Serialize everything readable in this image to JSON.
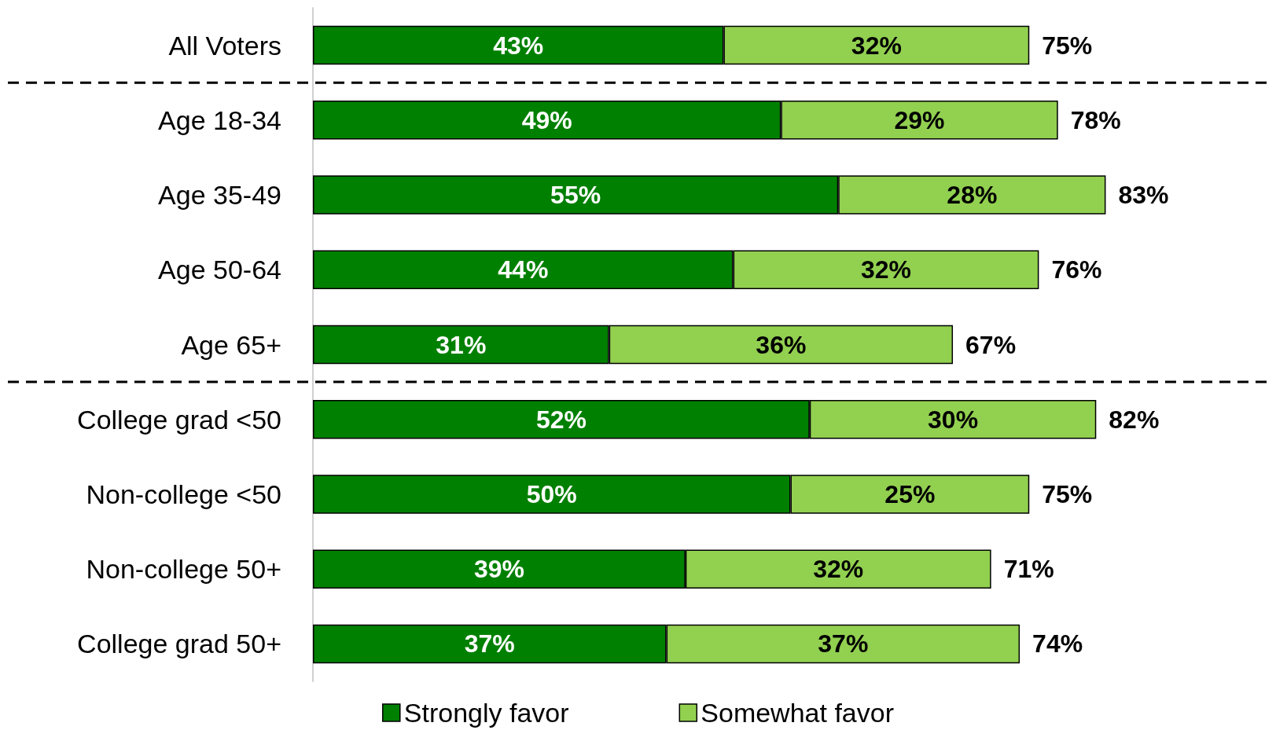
{
  "chart_data": {
    "type": "bar",
    "orientation": "horizontal",
    "stacked": true,
    "categories": [
      "All Voters",
      "Age 18-34",
      "Age 35-49",
      "Age 50-64",
      "Age 65+",
      "College grad <50",
      "Non-college <50",
      "Non-college 50+",
      "College grad 50+"
    ],
    "series": [
      {
        "name": "Strongly favor",
        "color": "#008000",
        "values": [
          43,
          49,
          55,
          44,
          31,
          52,
          50,
          39,
          37
        ],
        "value_labels": [
          "43%",
          "49%",
          "55%",
          "44%",
          "31%",
          "52%",
          "50%",
          "39%",
          "37%"
        ]
      },
      {
        "name": "Somewhat favor",
        "color": "#92d050",
        "values": [
          32,
          29,
          28,
          32,
          36,
          30,
          25,
          32,
          37
        ],
        "value_labels": [
          "32%",
          "29%",
          "28%",
          "32%",
          "36%",
          "30%",
          "25%",
          "32%",
          "37%"
        ]
      }
    ],
    "totals": [
      "75%",
      "78%",
      "83%",
      "76%",
      "67%",
      "82%",
      "75%",
      "71%",
      "74%"
    ],
    "tick_labels": "y",
    "legend": "bottom"
  }
}
